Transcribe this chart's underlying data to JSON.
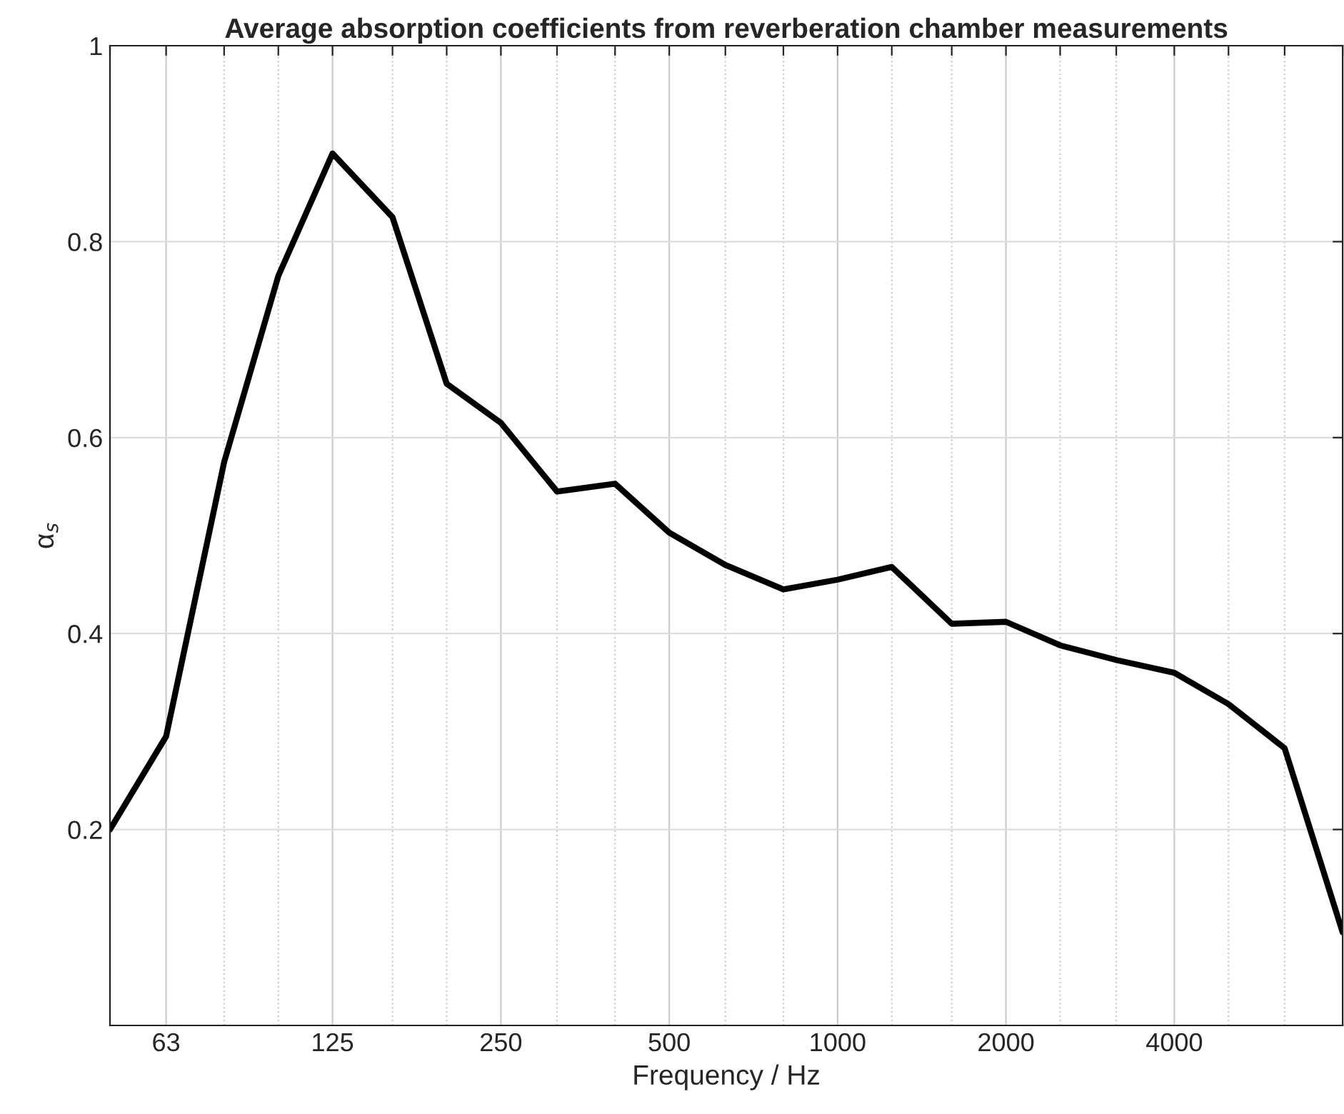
{
  "chart_data": {
    "type": "line",
    "title": "Average absorption coefficients from reverberation chamber measurements",
    "xlabel": "Frequency / Hz",
    "ylabel": "α$_{s}$",
    "x": [
      50,
      63,
      80,
      100,
      125,
      160,
      200,
      250,
      315,
      400,
      500,
      630,
      800,
      1000,
      1250,
      1600,
      2000,
      2500,
      3150,
      4000,
      5000,
      6300,
      8000
    ],
    "series": [
      {
        "color": "#000000",
        "values": [
          0.2,
          0.295,
          0.575,
          0.765,
          0.89,
          0.825,
          0.655,
          0.615,
          0.545,
          0.553,
          0.503,
          0.47,
          0.445,
          0.455,
          0.468,
          0.41,
          0.412,
          0.388,
          0.373,
          0.36,
          0.328,
          0.283,
          0.095
        ]
      }
    ],
    "log": "x",
    "xlim": [
      50,
      8000
    ],
    "ylim": [
      0,
      1
    ],
    "xticks": [
      {
        "value": 50,
        "label": null
      },
      63,
      {
        "value": 80,
        "label": null
      },
      {
        "value": 100,
        "label": null
      },
      125,
      {
        "value": 160,
        "label": null
      },
      {
        "value": 200,
        "label": null
      },
      250,
      {
        "value": 315,
        "label": null
      },
      {
        "value": 400,
        "label": null
      },
      500,
      {
        "value": 630,
        "label": null
      },
      {
        "value": 800,
        "label": null
      },
      1000,
      {
        "value": 1250,
        "label": null
      },
      {
        "value": 1600,
        "label": null
      },
      2000,
      {
        "value": 2500,
        "label": null
      },
      {
        "value": 3150,
        "label": null
      },
      4000,
      {
        "value": 5000,
        "label": null
      },
      {
        "value": 6300,
        "label": null
      },
      {
        "value": 8000,
        "label": null
      }
    ],
    "yticks": [
      0.2,
      0.4,
      0.6,
      0.8,
      1
    ],
    "grid": true,
    "legend": false,
    "marker": "none",
    "line_style": "solid"
  }
}
